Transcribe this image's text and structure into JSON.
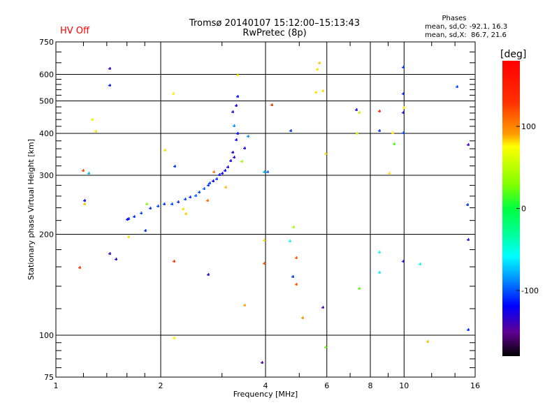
{
  "header": {
    "status": "HV Off",
    "title_line1": "Tromsø 20140107 15:12:00–15:13:43",
    "title_line2": "RwPretec (8p)",
    "phases_title": "Phases",
    "phases_o": "mean, sd,O: -92.1, 16.3",
    "phases_x": "mean, sd,X:  86.7, 21.6"
  },
  "colors": {
    "status": "#ff0000",
    "axis": "#000000"
  },
  "colorbar": {
    "label": "[deg]",
    "range": [
      -180,
      180
    ],
    "ticks": [
      100,
      0,
      -100
    ],
    "tick_labels": [
      "100",
      "0",
      "-100"
    ]
  },
  "chart_data": {
    "type": "scatter",
    "xlabel": "Frequency [MHz]",
    "ylabel": "Stationary phase Virtual Height [km]",
    "xscale": "log",
    "yscale": "log",
    "xlim": [
      1,
      16
    ],
    "ylim": [
      75,
      750
    ],
    "xticks": [
      1,
      2,
      4,
      6,
      8,
      10,
      16
    ],
    "xtick_labels": [
      "1",
      "2",
      "4",
      "6",
      "8",
      "10",
      "16"
    ],
    "yticks": [
      75,
      100,
      200,
      300,
      400,
      500,
      600,
      750
    ],
    "ytick_labels": [
      "75",
      "100",
      "200",
      "300",
      "400",
      "500",
      "600",
      "750"
    ],
    "grid": true,
    "color_by": "phase_deg",
    "points": [
      [
        1.6,
        222,
        -110
      ],
      [
        1.62,
        223,
        -105
      ],
      [
        1.68,
        226,
        -100
      ],
      [
        1.76,
        232,
        -95
      ],
      [
        1.87,
        240,
        -100
      ],
      [
        1.96,
        243,
        -95
      ],
      [
        2.05,
        246,
        -100
      ],
      [
        2.15,
        247,
        -95
      ],
      [
        2.25,
        250,
        -100
      ],
      [
        2.35,
        255,
        -95
      ],
      [
        2.43,
        258,
        -100
      ],
      [
        2.52,
        261,
        -90
      ],
      [
        2.58,
        268,
        -95
      ],
      [
        2.66,
        274,
        -90
      ],
      [
        2.74,
        280,
        -100
      ],
      [
        2.77,
        284,
        -95
      ],
      [
        2.83,
        289,
        -110
      ],
      [
        2.9,
        293,
        -100
      ],
      [
        2.95,
        301,
        -110
      ],
      [
        3.01,
        304,
        -120
      ],
      [
        3.06,
        311,
        -110
      ],
      [
        3.12,
        318,
        -120
      ],
      [
        3.18,
        332,
        -115
      ],
      [
        3.25,
        340,
        -125
      ],
      [
        3.22,
        351,
        -120
      ],
      [
        3.3,
        383,
        -115
      ],
      [
        3.33,
        400,
        -110
      ],
      [
        3.25,
        422,
        -80
      ],
      [
        3.22,
        464,
        -125
      ],
      [
        3.3,
        485,
        -120
      ],
      [
        3.33,
        515,
        -110
      ],
      [
        2.84,
        308,
        130
      ],
      [
        3.07,
        277,
        110
      ],
      [
        2.72,
        252,
        135
      ],
      [
        2.36,
        230,
        105
      ],
      [
        2.32,
        238,
        100
      ],
      [
        1.82,
        246,
        50
      ],
      [
        2.19,
        320,
        -100
      ],
      [
        2.06,
        357,
        100
      ],
      [
        2.17,
        526,
        95
      ],
      [
        3.42,
        330,
        60
      ],
      [
        3.48,
        361,
        -125
      ],
      [
        3.56,
        393,
        -80
      ],
      [
        3.97,
        307,
        -70
      ],
      [
        1.2,
        310,
        145
      ],
      [
        1.24,
        304,
        -70
      ],
      [
        1.21,
        253,
        -110
      ],
      [
        1.21,
        247,
        110
      ],
      [
        1.17,
        159,
        150
      ],
      [
        1.43,
        625,
        -130
      ],
      [
        1.43,
        557,
        -105
      ],
      [
        1.27,
        440,
        80
      ],
      [
        1.3,
        406,
        100
      ],
      [
        1.43,
        175,
        -130
      ],
      [
        1.49,
        169,
        -130
      ],
      [
        1.62,
        197,
        100
      ],
      [
        1.81,
        205,
        -100
      ],
      [
        2.18,
        166,
        150
      ],
      [
        2.74,
        152,
        -120
      ],
      [
        2.18,
        98,
        95
      ],
      [
        3.33,
        600,
        100
      ],
      [
        3.48,
        123,
        120
      ],
      [
        3.9,
        83,
        -140
      ],
      [
        3.96,
        192,
        100
      ],
      [
        3.97,
        164,
        140
      ],
      [
        4.05,
        307,
        -90
      ],
      [
        4.17,
        487,
        150
      ],
      [
        4.72,
        408,
        -100
      ],
      [
        4.82,
        210,
        60
      ],
      [
        4.7,
        191,
        -45
      ],
      [
        4.78,
        150,
        -100
      ],
      [
        4.91,
        170,
        140
      ],
      [
        4.91,
        142,
        140
      ],
      [
        5.1,
        113,
        125
      ],
      [
        5.62,
        622,
        100
      ],
      [
        5.7,
        650,
        110
      ],
      [
        5.57,
        531,
        100
      ],
      [
        5.83,
        535,
        100
      ],
      [
        5.83,
        121,
        -140
      ],
      [
        5.96,
        348,
        100
      ],
      [
        5.95,
        92,
        40
      ],
      [
        7.29,
        470,
        -120
      ],
      [
        7.43,
        461,
        70
      ],
      [
        7.34,
        400,
        70
      ],
      [
        7.43,
        138,
        40
      ],
      [
        8.51,
        467,
        155
      ],
      [
        8.51,
        408,
        -100
      ],
      [
        8.51,
        177,
        -50
      ],
      [
        8.51,
        154,
        -55
      ],
      [
        9.05,
        304,
        100
      ],
      [
        9.29,
        402,
        95
      ],
      [
        9.37,
        372,
        30
      ],
      [
        9.95,
        630,
        -100
      ],
      [
        9.95,
        526,
        -105
      ],
      [
        9.95,
        462,
        -130
      ],
      [
        10.0,
        477,
        95
      ],
      [
        9.95,
        402,
        -95
      ],
      [
        9.95,
        166,
        -130
      ],
      [
        11.1,
        163,
        -45
      ],
      [
        11.7,
        96,
        110
      ],
      [
        14.2,
        551,
        -95
      ],
      [
        15.3,
        370,
        -135
      ],
      [
        15.2,
        245,
        -100
      ],
      [
        15.3,
        193,
        -130
      ],
      [
        15.3,
        104,
        -105
      ]
    ]
  }
}
